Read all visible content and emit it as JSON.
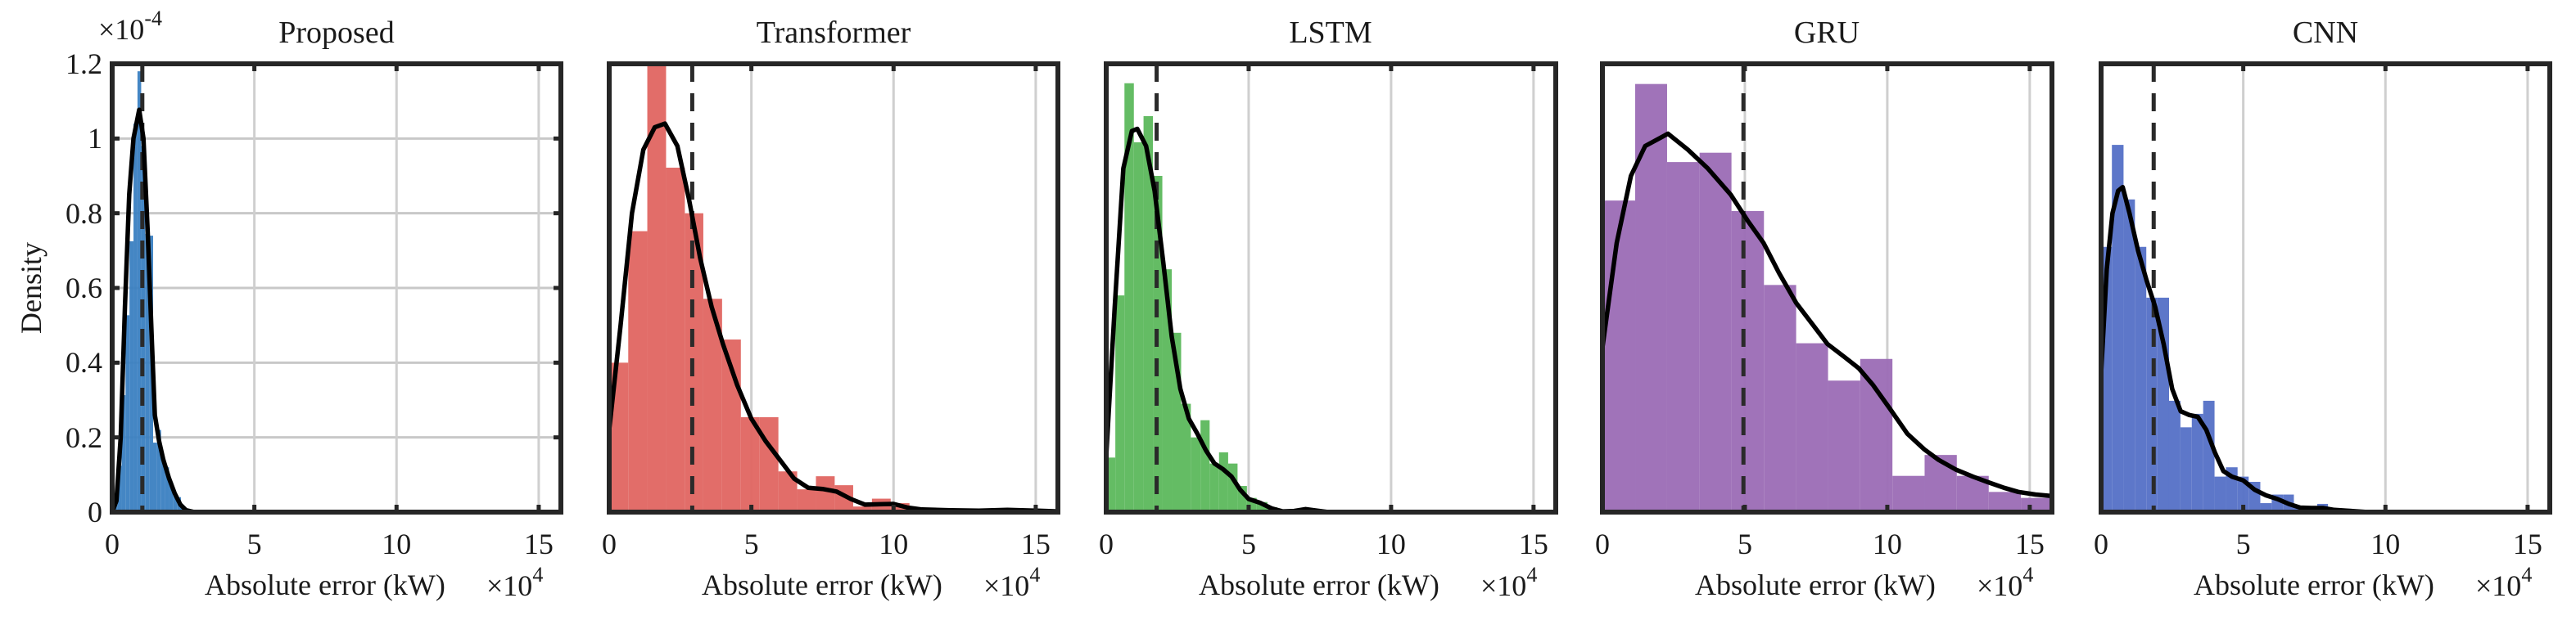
{
  "figure": {
    "ylabel": "Density",
    "y_multiplier": "×10",
    "y_multiplier_exp": "-4",
    "x_multiplier": "×10",
    "x_multiplier_exp": "4",
    "xlabel": "Absolute error (kW)"
  },
  "chart_data": [
    {
      "type": "histogram+kde",
      "title": "Proposed",
      "xlabel": "Absolute error (kW)",
      "x_scale": "×10^4",
      "ylabel": "Density",
      "y_scale": "×10^-4",
      "xlim": [
        0,
        15.78
      ],
      "ylim": [
        0,
        1.2
      ],
      "xticks": [
        0,
        5,
        10,
        15
      ],
      "yticks": [
        0,
        0.2,
        0.4,
        0.6,
        0.8,
        1,
        1.2
      ],
      "grid": "both",
      "color": "#3a7fc1",
      "mean": 1.06,
      "bins": [
        {
          "x0": 0.05,
          "x1": 0.19,
          "h": 0.02
        },
        {
          "x0": 0.19,
          "x1": 0.33,
          "h": 0.124
        },
        {
          "x0": 0.33,
          "x1": 0.47,
          "h": 0.313
        },
        {
          "x0": 0.47,
          "x1": 0.61,
          "h": 0.527
        },
        {
          "x0": 0.61,
          "x1": 0.75,
          "h": 0.725
        },
        {
          "x0": 0.75,
          "x1": 0.89,
          "h": 1.04
        },
        {
          "x0": 0.89,
          "x1": 1.02,
          "h": 1.18
        },
        {
          "x0": 1.02,
          "x1": 1.16,
          "h": 0.98
        },
        {
          "x0": 1.16,
          "x1": 1.3,
          "h": 0.745
        },
        {
          "x0": 1.3,
          "x1": 1.44,
          "h": 0.74
        },
        {
          "x0": 1.44,
          "x1": 1.58,
          "h": 0.186
        },
        {
          "x0": 1.58,
          "x1": 1.72,
          "h": 0.22
        },
        {
          "x0": 1.72,
          "x1": 1.86,
          "h": 0.14
        },
        {
          "x0": 1.86,
          "x1": 2.0,
          "h": 0.12
        },
        {
          "x0": 2.0,
          "x1": 2.14,
          "h": 0.08
        },
        {
          "x0": 2.14,
          "x1": 2.28,
          "h": 0.05
        },
        {
          "x0": 2.28,
          "x1": 2.42,
          "h": 0.04
        },
        {
          "x0": 2.42,
          "x1": 2.56,
          "h": 0.015
        }
      ],
      "kde": [
        [
          0.0,
          0.0
        ],
        [
          0.15,
          0.03
        ],
        [
          0.3,
          0.2
        ],
        [
          0.45,
          0.55
        ],
        [
          0.6,
          0.85
        ],
        [
          0.75,
          1.0
        ],
        [
          0.95,
          1.077
        ],
        [
          1.1,
          1.0
        ],
        [
          1.25,
          0.75
        ],
        [
          1.4,
          0.45
        ],
        [
          1.5,
          0.26
        ],
        [
          1.65,
          0.19
        ],
        [
          1.8,
          0.14
        ],
        [
          2.0,
          0.09
        ],
        [
          2.2,
          0.05
        ],
        [
          2.4,
          0.02
        ],
        [
          2.6,
          0.005
        ],
        [
          2.9,
          0.0
        ],
        [
          15.78,
          0.0
        ]
      ]
    },
    {
      "type": "histogram+kde",
      "title": "Transformer",
      "xlabel": "Absolute error (kW)",
      "x_scale": "×10^4",
      "xlim": [
        0,
        15.78
      ],
      "ylim": [
        0,
        1.2
      ],
      "xticks": [
        0,
        5,
        10,
        15
      ],
      "grid": "x",
      "color": "#e06561",
      "mean": 2.92,
      "bins": [
        {
          "x0": 0.0,
          "x1": 0.67,
          "h": 0.4
        },
        {
          "x0": 0.67,
          "x1": 1.34,
          "h": 0.752
        },
        {
          "x0": 1.34,
          "x1": 2.0,
          "h": 1.2
        },
        {
          "x0": 2.0,
          "x1": 2.66,
          "h": 0.922
        },
        {
          "x0": 2.66,
          "x1": 3.31,
          "h": 0.8
        },
        {
          "x0": 3.31,
          "x1": 3.97,
          "h": 0.571
        },
        {
          "x0": 3.97,
          "x1": 4.63,
          "h": 0.462
        },
        {
          "x0": 4.63,
          "x1": 5.29,
          "h": 0.254
        },
        {
          "x0": 5.29,
          "x1": 5.95,
          "h": 0.254
        },
        {
          "x0": 5.95,
          "x1": 6.61,
          "h": 0.109
        },
        {
          "x0": 6.61,
          "x1": 7.27,
          "h": 0.061
        },
        {
          "x0": 7.27,
          "x1": 7.93,
          "h": 0.096
        },
        {
          "x0": 7.93,
          "x1": 8.58,
          "h": 0.072
        },
        {
          "x0": 8.58,
          "x1": 9.24,
          "h": 0.015
        },
        {
          "x0": 9.24,
          "x1": 9.9,
          "h": 0.036
        },
        {
          "x0": 9.9,
          "x1": 10.56,
          "h": 0.024
        },
        {
          "x0": 10.56,
          "x1": 11.22,
          "h": 0.01
        },
        {
          "x0": 11.22,
          "x1": 13.0,
          "h": 0.004
        },
        {
          "x0": 13.0,
          "x1": 14.5,
          "h": 0.006
        }
      ],
      "kde": [
        [
          0.0,
          0.22
        ],
        [
          0.4,
          0.5
        ],
        [
          0.8,
          0.8
        ],
        [
          1.2,
          0.97
        ],
        [
          1.6,
          1.03
        ],
        [
          1.96,
          1.04
        ],
        [
          2.4,
          0.98
        ],
        [
          2.8,
          0.84
        ],
        [
          3.2,
          0.68
        ],
        [
          3.6,
          0.55
        ],
        [
          4.0,
          0.45
        ],
        [
          4.5,
          0.34
        ],
        [
          5.0,
          0.25
        ],
        [
          5.5,
          0.19
        ],
        [
          6.0,
          0.14
        ],
        [
          6.5,
          0.09
        ],
        [
          7.0,
          0.065
        ],
        [
          7.5,
          0.062
        ],
        [
          8.0,
          0.055
        ],
        [
          8.5,
          0.035
        ],
        [
          9.0,
          0.02
        ],
        [
          9.5,
          0.021
        ],
        [
          10.0,
          0.022
        ],
        [
          10.5,
          0.012
        ],
        [
          11.0,
          0.007
        ],
        [
          12.0,
          0.005
        ],
        [
          13.0,
          0.004
        ],
        [
          14.0,
          0.006
        ],
        [
          15.0,
          0.004
        ],
        [
          15.78,
          0.002
        ]
      ]
    },
    {
      "type": "histogram+kde",
      "title": "LSTM",
      "xlabel": "Absolute error (kW)",
      "x_scale": "×10^4",
      "xlim": [
        0,
        15.78
      ],
      "ylim": [
        0,
        1.2
      ],
      "xticks": [
        0,
        5,
        10,
        15
      ],
      "grid": "x",
      "color": "#5cb85c",
      "mean": 1.77,
      "bins": [
        {
          "x0": 0.0,
          "x1": 0.32,
          "h": 0.146
        },
        {
          "x0": 0.32,
          "x1": 0.64,
          "h": 0.58
        },
        {
          "x0": 0.64,
          "x1": 0.97,
          "h": 1.148
        },
        {
          "x0": 0.97,
          "x1": 1.31,
          "h": 0.99
        },
        {
          "x0": 1.31,
          "x1": 1.64,
          "h": 1.06
        },
        {
          "x0": 1.64,
          "x1": 1.97,
          "h": 0.9
        },
        {
          "x0": 1.97,
          "x1": 2.3,
          "h": 0.65
        },
        {
          "x0": 2.3,
          "x1": 2.63,
          "h": 0.48
        },
        {
          "x0": 2.63,
          "x1": 2.97,
          "h": 0.29
        },
        {
          "x0": 2.97,
          "x1": 3.31,
          "h": 0.2
        },
        {
          "x0": 3.31,
          "x1": 3.63,
          "h": 0.246
        },
        {
          "x0": 3.63,
          "x1": 3.96,
          "h": 0.13
        },
        {
          "x0": 3.96,
          "x1": 4.28,
          "h": 0.16
        },
        {
          "x0": 4.28,
          "x1": 4.61,
          "h": 0.13
        },
        {
          "x0": 4.61,
          "x1": 4.94,
          "h": 0.07
        },
        {
          "x0": 4.94,
          "x1": 5.28,
          "h": 0.038
        },
        {
          "x0": 5.28,
          "x1": 5.66,
          "h": 0.027
        },
        {
          "x0": 5.66,
          "x1": 6.0,
          "h": 0.013
        },
        {
          "x0": 6.0,
          "x1": 6.34,
          "h": 0.003
        },
        {
          "x0": 6.9,
          "x1": 7.23,
          "h": 0.01
        }
      ],
      "kde": [
        [
          0.0,
          0.15
        ],
        [
          0.3,
          0.55
        ],
        [
          0.6,
          0.92
        ],
        [
          0.9,
          1.02
        ],
        [
          1.09,
          1.026
        ],
        [
          1.4,
          0.98
        ],
        [
          1.7,
          0.86
        ],
        [
          2.0,
          0.67
        ],
        [
          2.3,
          0.47
        ],
        [
          2.6,
          0.33
        ],
        [
          2.9,
          0.25
        ],
        [
          3.2,
          0.21
        ],
        [
          3.5,
          0.165
        ],
        [
          3.8,
          0.13
        ],
        [
          4.1,
          0.115
        ],
        [
          4.4,
          0.095
        ],
        [
          4.7,
          0.06
        ],
        [
          5.0,
          0.035
        ],
        [
          5.4,
          0.025
        ],
        [
          5.8,
          0.01
        ],
        [
          6.2,
          0.002
        ],
        [
          6.6,
          0.003
        ],
        [
          7.0,
          0.008
        ],
        [
          7.4,
          0.004
        ],
        [
          7.8,
          0.0
        ],
        [
          15.78,
          0.0
        ]
      ]
    },
    {
      "type": "histogram+kde",
      "title": "GRU",
      "xlabel": "Absolute error (kW)",
      "x_scale": "×10^4",
      "xlim": [
        0,
        15.78
      ],
      "ylim": [
        0,
        1.2
      ],
      "xticks": [
        0,
        5,
        10,
        15
      ],
      "grid": "x",
      "color": "#9b6bb5",
      "mean": 4.95,
      "bins": [
        {
          "x0": 0.0,
          "x1": 1.15,
          "h": 0.834
        },
        {
          "x0": 1.15,
          "x1": 2.27,
          "h": 1.146
        },
        {
          "x0": 2.27,
          "x1": 3.41,
          "h": 0.937
        },
        {
          "x0": 3.41,
          "x1": 4.53,
          "h": 0.962
        },
        {
          "x0": 4.53,
          "x1": 5.67,
          "h": 0.806
        },
        {
          "x0": 5.67,
          "x1": 6.8,
          "h": 0.608
        },
        {
          "x0": 6.8,
          "x1": 7.92,
          "h": 0.452
        },
        {
          "x0": 7.92,
          "x1": 9.05,
          "h": 0.352
        },
        {
          "x0": 9.05,
          "x1": 10.18,
          "h": 0.41
        },
        {
          "x0": 10.18,
          "x1": 11.31,
          "h": 0.097
        },
        {
          "x0": 11.31,
          "x1": 12.44,
          "h": 0.153
        },
        {
          "x0": 12.44,
          "x1": 13.56,
          "h": 0.097
        },
        {
          "x0": 13.56,
          "x1": 14.69,
          "h": 0.054
        },
        {
          "x0": 14.69,
          "x1": 15.78,
          "h": 0.038
        }
      ],
      "kde": [
        [
          0.0,
          0.44
        ],
        [
          0.5,
          0.72
        ],
        [
          1.0,
          0.9
        ],
        [
          1.5,
          0.98
        ],
        [
          2.3,
          1.013
        ],
        [
          3.0,
          0.97
        ],
        [
          3.7,
          0.92
        ],
        [
          4.5,
          0.85
        ],
        [
          5.1,
          0.78
        ],
        [
          5.66,
          0.72
        ],
        [
          6.2,
          0.64
        ],
        [
          6.8,
          0.56
        ],
        [
          7.4,
          0.5
        ],
        [
          7.9,
          0.45
        ],
        [
          8.5,
          0.415
        ],
        [
          9.0,
          0.385
        ],
        [
          9.5,
          0.34
        ],
        [
          10.1,
          0.276
        ],
        [
          10.7,
          0.21
        ],
        [
          11.3,
          0.168
        ],
        [
          11.8,
          0.14
        ],
        [
          12.4,
          0.114
        ],
        [
          13.0,
          0.095
        ],
        [
          13.5,
          0.081
        ],
        [
          14.1,
          0.065
        ],
        [
          14.6,
          0.054
        ],
        [
          15.2,
          0.047
        ],
        [
          15.78,
          0.043
        ]
      ]
    },
    {
      "type": "histogram+kde",
      "title": "CNN",
      "xlabel": "Absolute error (kW)",
      "x_scale": "×10^4",
      "xlim": [
        0,
        15.78
      ],
      "ylim": [
        0,
        1.2
      ],
      "xticks": [
        0,
        5,
        10,
        15
      ],
      "grid": "x",
      "color": "#5470c6",
      "mean": 1.85,
      "bins": [
        {
          "x0": 0.0,
          "x1": 0.38,
          "h": 0.71
        },
        {
          "x0": 0.38,
          "x1": 0.79,
          "h": 0.983
        },
        {
          "x0": 0.79,
          "x1": 1.19,
          "h": 0.837
        },
        {
          "x0": 1.19,
          "x1": 1.59,
          "h": 0.71
        },
        {
          "x0": 1.59,
          "x1": 1.98,
          "h": 0.574
        },
        {
          "x0": 1.98,
          "x1": 2.39,
          "h": 0.574
        },
        {
          "x0": 2.39,
          "x1": 2.79,
          "h": 0.298
        },
        {
          "x0": 2.79,
          "x1": 3.19,
          "h": 0.227
        },
        {
          "x0": 3.19,
          "x1": 3.59,
          "h": 0.263
        },
        {
          "x0": 3.59,
          "x1": 3.99,
          "h": 0.298
        },
        {
          "x0": 3.99,
          "x1": 4.39,
          "h": 0.095
        },
        {
          "x0": 4.39,
          "x1": 4.8,
          "h": 0.12
        },
        {
          "x0": 4.8,
          "x1": 5.19,
          "h": 0.095
        },
        {
          "x0": 5.19,
          "x1": 5.6,
          "h": 0.081
        },
        {
          "x0": 5.6,
          "x1": 6.0,
          "h": 0.024
        },
        {
          "x0": 6.0,
          "x1": 6.4,
          "h": 0.047
        },
        {
          "x0": 6.4,
          "x1": 6.78,
          "h": 0.047
        },
        {
          "x0": 6.78,
          "x1": 7.19,
          "h": 0.011
        },
        {
          "x0": 7.19,
          "x1": 7.6,
          "h": 0.008
        },
        {
          "x0": 7.6,
          "x1": 7.98,
          "h": 0.022
        },
        {
          "x0": 7.98,
          "x1": 8.8,
          "h": 0.009
        }
      ],
      "kde": [
        [
          0.0,
          0.37
        ],
        [
          0.2,
          0.65
        ],
        [
          0.4,
          0.8
        ],
        [
          0.6,
          0.86
        ],
        [
          0.76,
          0.87
        ],
        [
          1.0,
          0.8
        ],
        [
          1.3,
          0.7
        ],
        [
          1.6,
          0.62
        ],
        [
          1.9,
          0.55
        ],
        [
          2.2,
          0.45
        ],
        [
          2.5,
          0.33
        ],
        [
          2.8,
          0.27
        ],
        [
          3.1,
          0.26
        ],
        [
          3.4,
          0.255
        ],
        [
          3.7,
          0.22
        ],
        [
          4.0,
          0.16
        ],
        [
          4.3,
          0.11
        ],
        [
          4.6,
          0.095
        ],
        [
          5.0,
          0.085
        ],
        [
          5.4,
          0.06
        ],
        [
          5.8,
          0.045
        ],
        [
          6.2,
          0.035
        ],
        [
          6.6,
          0.022
        ],
        [
          7.0,
          0.012
        ],
        [
          7.4,
          0.011
        ],
        [
          7.8,
          0.011
        ],
        [
          8.2,
          0.006
        ],
        [
          8.8,
          0.003
        ],
        [
          9.4,
          0.0
        ],
        [
          15.78,
          0.0
        ]
      ]
    }
  ]
}
